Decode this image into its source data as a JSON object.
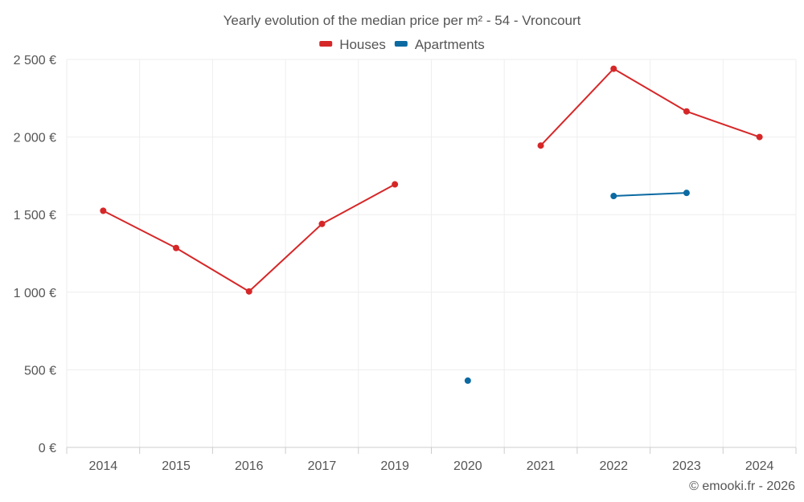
{
  "chart_data": {
    "type": "line",
    "title": "Yearly evolution of the median price per m² - 54 - Vroncourt",
    "categories": [
      "2014",
      "2015",
      "2016",
      "2017",
      "2019",
      "2020",
      "2021",
      "2022",
      "2023",
      "2024"
    ],
    "ylim": [
      0,
      2500
    ],
    "yticks": [
      0,
      500,
      1000,
      1500,
      2000,
      2500
    ],
    "ytick_labels": [
      "0 €",
      "500 €",
      "1 000 €",
      "1 500 €",
      "2 000 €",
      "2 500 €"
    ],
    "grid": true,
    "legend_position": "top-center",
    "series": [
      {
        "name": "Houses",
        "color": "#d62728",
        "values": [
          1525,
          1285,
          1005,
          1440,
          1695,
          null,
          1945,
          2440,
          2165,
          2000
        ]
      },
      {
        "name": "Apartments",
        "color": "#0b6aa2",
        "values": [
          null,
          null,
          null,
          null,
          null,
          430,
          null,
          1620,
          1640,
          null
        ]
      }
    ]
  },
  "credit": "© emooki.fr - 2026"
}
